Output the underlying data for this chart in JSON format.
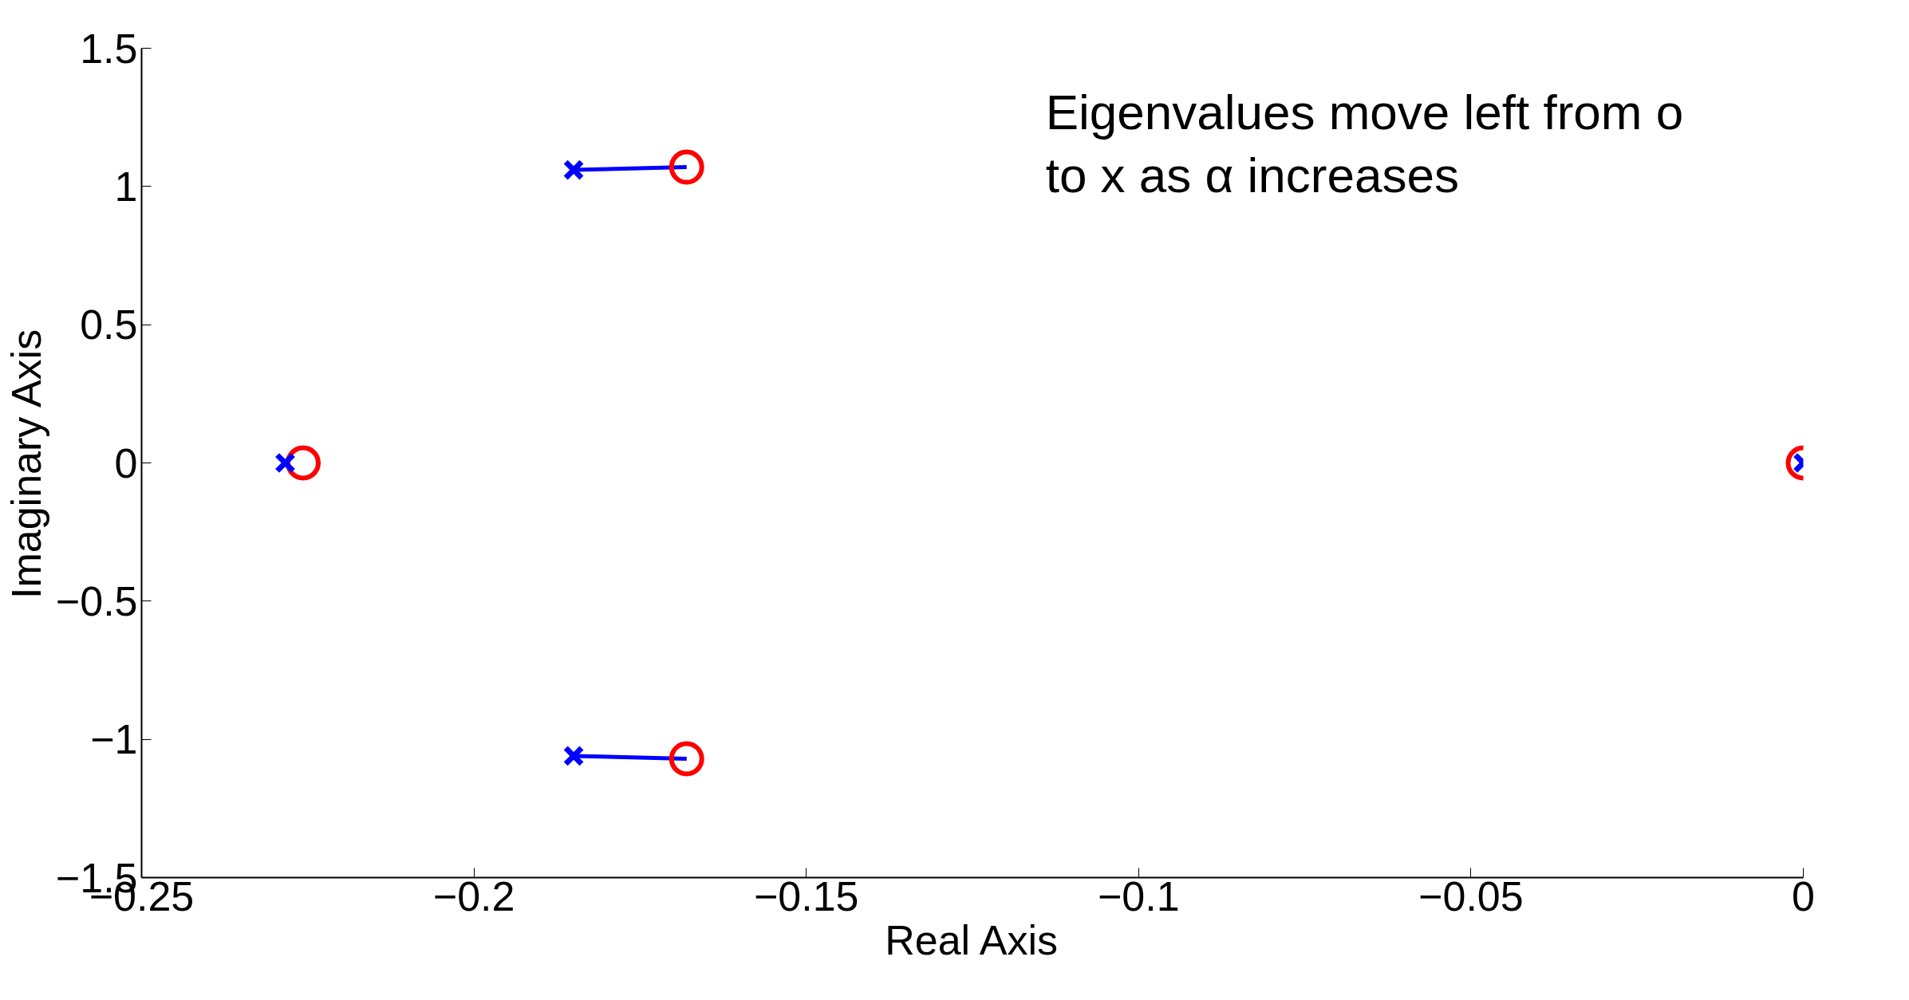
{
  "chart_data": {
    "type": "scatter",
    "xlabel": "Real Axis",
    "ylabel": "Imaginary Axis",
    "annotations": [
      "Eigenvalues move left from o to x as α increases"
    ],
    "xlim": [
      -0.25,
      0
    ],
    "ylim": [
      -1.5,
      1.5
    ],
    "xticks": [
      -0.25,
      -0.2,
      -0.15,
      -0.1,
      -0.05,
      0
    ],
    "yticks": [
      -1.5,
      -1,
      -0.5,
      0,
      0.5,
      1,
      1.5
    ],
    "grid": false,
    "series": [
      {
        "type": "line",
        "color": "#0000ff",
        "x": [
          -0.168,
          -0.185
        ],
        "values": [
          1.07,
          1.06
        ]
      },
      {
        "type": "line",
        "color": "#0000ff",
        "x": [
          -0.168,
          -0.185
        ],
        "values": [
          -1.07,
          -1.06
        ]
      },
      {
        "color": "#ff0000",
        "marker": "circle",
        "x": [
          -0.168,
          -0.168,
          -0.2257,
          0
        ],
        "values": [
          1.07,
          -1.07,
          0,
          0
        ]
      },
      {
        "color": "#0000ff",
        "marker": "cross",
        "x": [
          -0.185,
          -0.185,
          -0.2284,
          0
        ],
        "values": [
          1.06,
          -1.06,
          0,
          0
        ]
      }
    ]
  }
}
